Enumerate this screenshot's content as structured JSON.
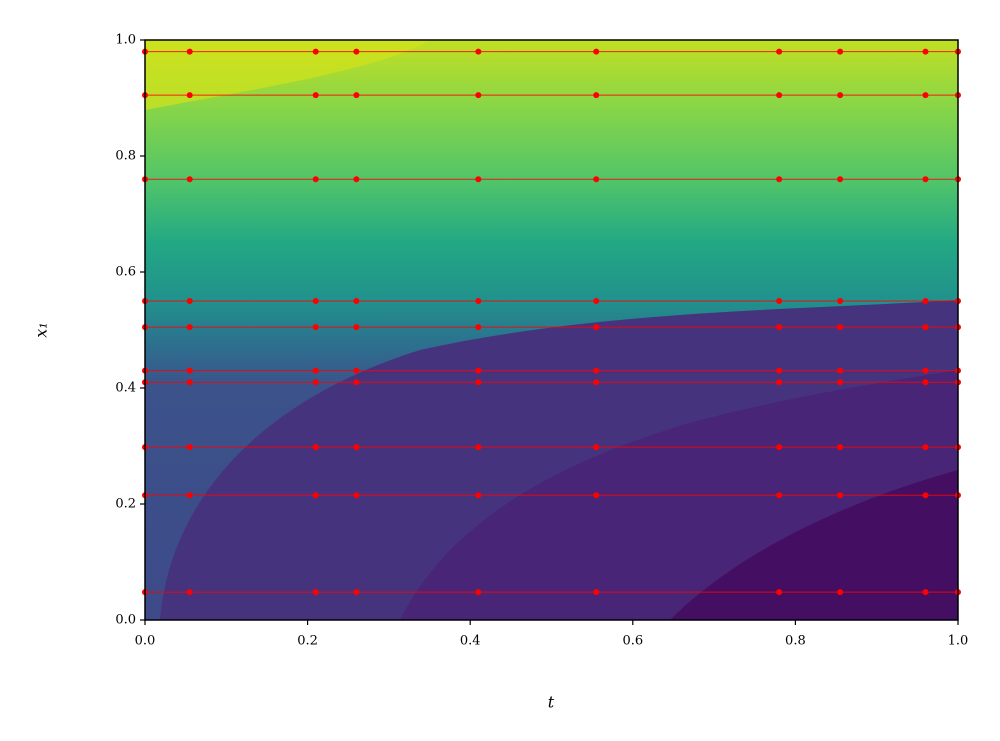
{
  "chart_data": {
    "type": "line",
    "xlabel": "t",
    "ylabel": "x₁",
    "xlim": [
      0,
      1
    ],
    "ylim": [
      0,
      1
    ],
    "xticks": [
      {
        "value": 0,
        "label": "0.0"
      },
      0.2,
      0.4,
      0.6,
      0.8,
      {
        "value": 1,
        "label": "1.0"
      }
    ],
    "yticks": [
      {
        "value": 0,
        "label": "0.0"
      },
      0.2,
      0.4,
      0.6,
      0.8,
      {
        "value": 1,
        "label": "1.0"
      }
    ],
    "x": [
      0,
      0.055,
      0.21,
      0.26,
      0.41,
      0.555,
      0.78,
      0.855,
      0.96,
      1.0
    ],
    "series": [
      {
        "color": "#ff0000",
        "values": [
          0.98,
          0.98,
          0.98,
          0.98,
          0.98,
          0.98,
          0.98,
          0.98,
          0.98,
          0.98
        ]
      },
      {
        "color": "#ff0000",
        "values": [
          0.905,
          0.905,
          0.905,
          0.905,
          0.905,
          0.905,
          0.905,
          0.905,
          0.905,
          0.905
        ]
      },
      {
        "color": "#ff0000",
        "values": [
          0.76,
          0.76,
          0.76,
          0.76,
          0.76,
          0.76,
          0.76,
          0.76,
          0.76,
          0.76
        ]
      },
      {
        "color": "#ff0000",
        "values": [
          0.55,
          0.55,
          0.55,
          0.55,
          0.55,
          0.55,
          0.55,
          0.55,
          0.55,
          0.55
        ]
      },
      {
        "color": "#ff0000",
        "values": [
          0.505,
          0.505,
          0.505,
          0.505,
          0.505,
          0.505,
          0.505,
          0.505,
          0.505,
          0.505
        ]
      },
      {
        "color": "#ff0000",
        "values": [
          0.43,
          0.43,
          0.43,
          0.43,
          0.43,
          0.43,
          0.43,
          0.43,
          0.43,
          0.43
        ]
      },
      {
        "color": "#ff0000",
        "values": [
          0.41,
          0.41,
          0.41,
          0.41,
          0.41,
          0.41,
          0.41,
          0.41,
          0.41,
          0.41
        ]
      },
      {
        "color": "#ff0000",
        "values": [
          0.298,
          0.298,
          0.298,
          0.298,
          0.298,
          0.298,
          0.298,
          0.298,
          0.298,
          0.298
        ]
      },
      {
        "color": "#ff0000",
        "values": [
          0.215,
          0.215,
          0.215,
          0.215,
          0.215,
          0.215,
          0.215,
          0.215,
          0.215,
          0.215
        ]
      },
      {
        "color": "#ff0000",
        "values": [
          0.048,
          0.048,
          0.048,
          0.048,
          0.048,
          0.048,
          0.048,
          0.048,
          0.048,
          0.048
        ]
      }
    ]
  }
}
